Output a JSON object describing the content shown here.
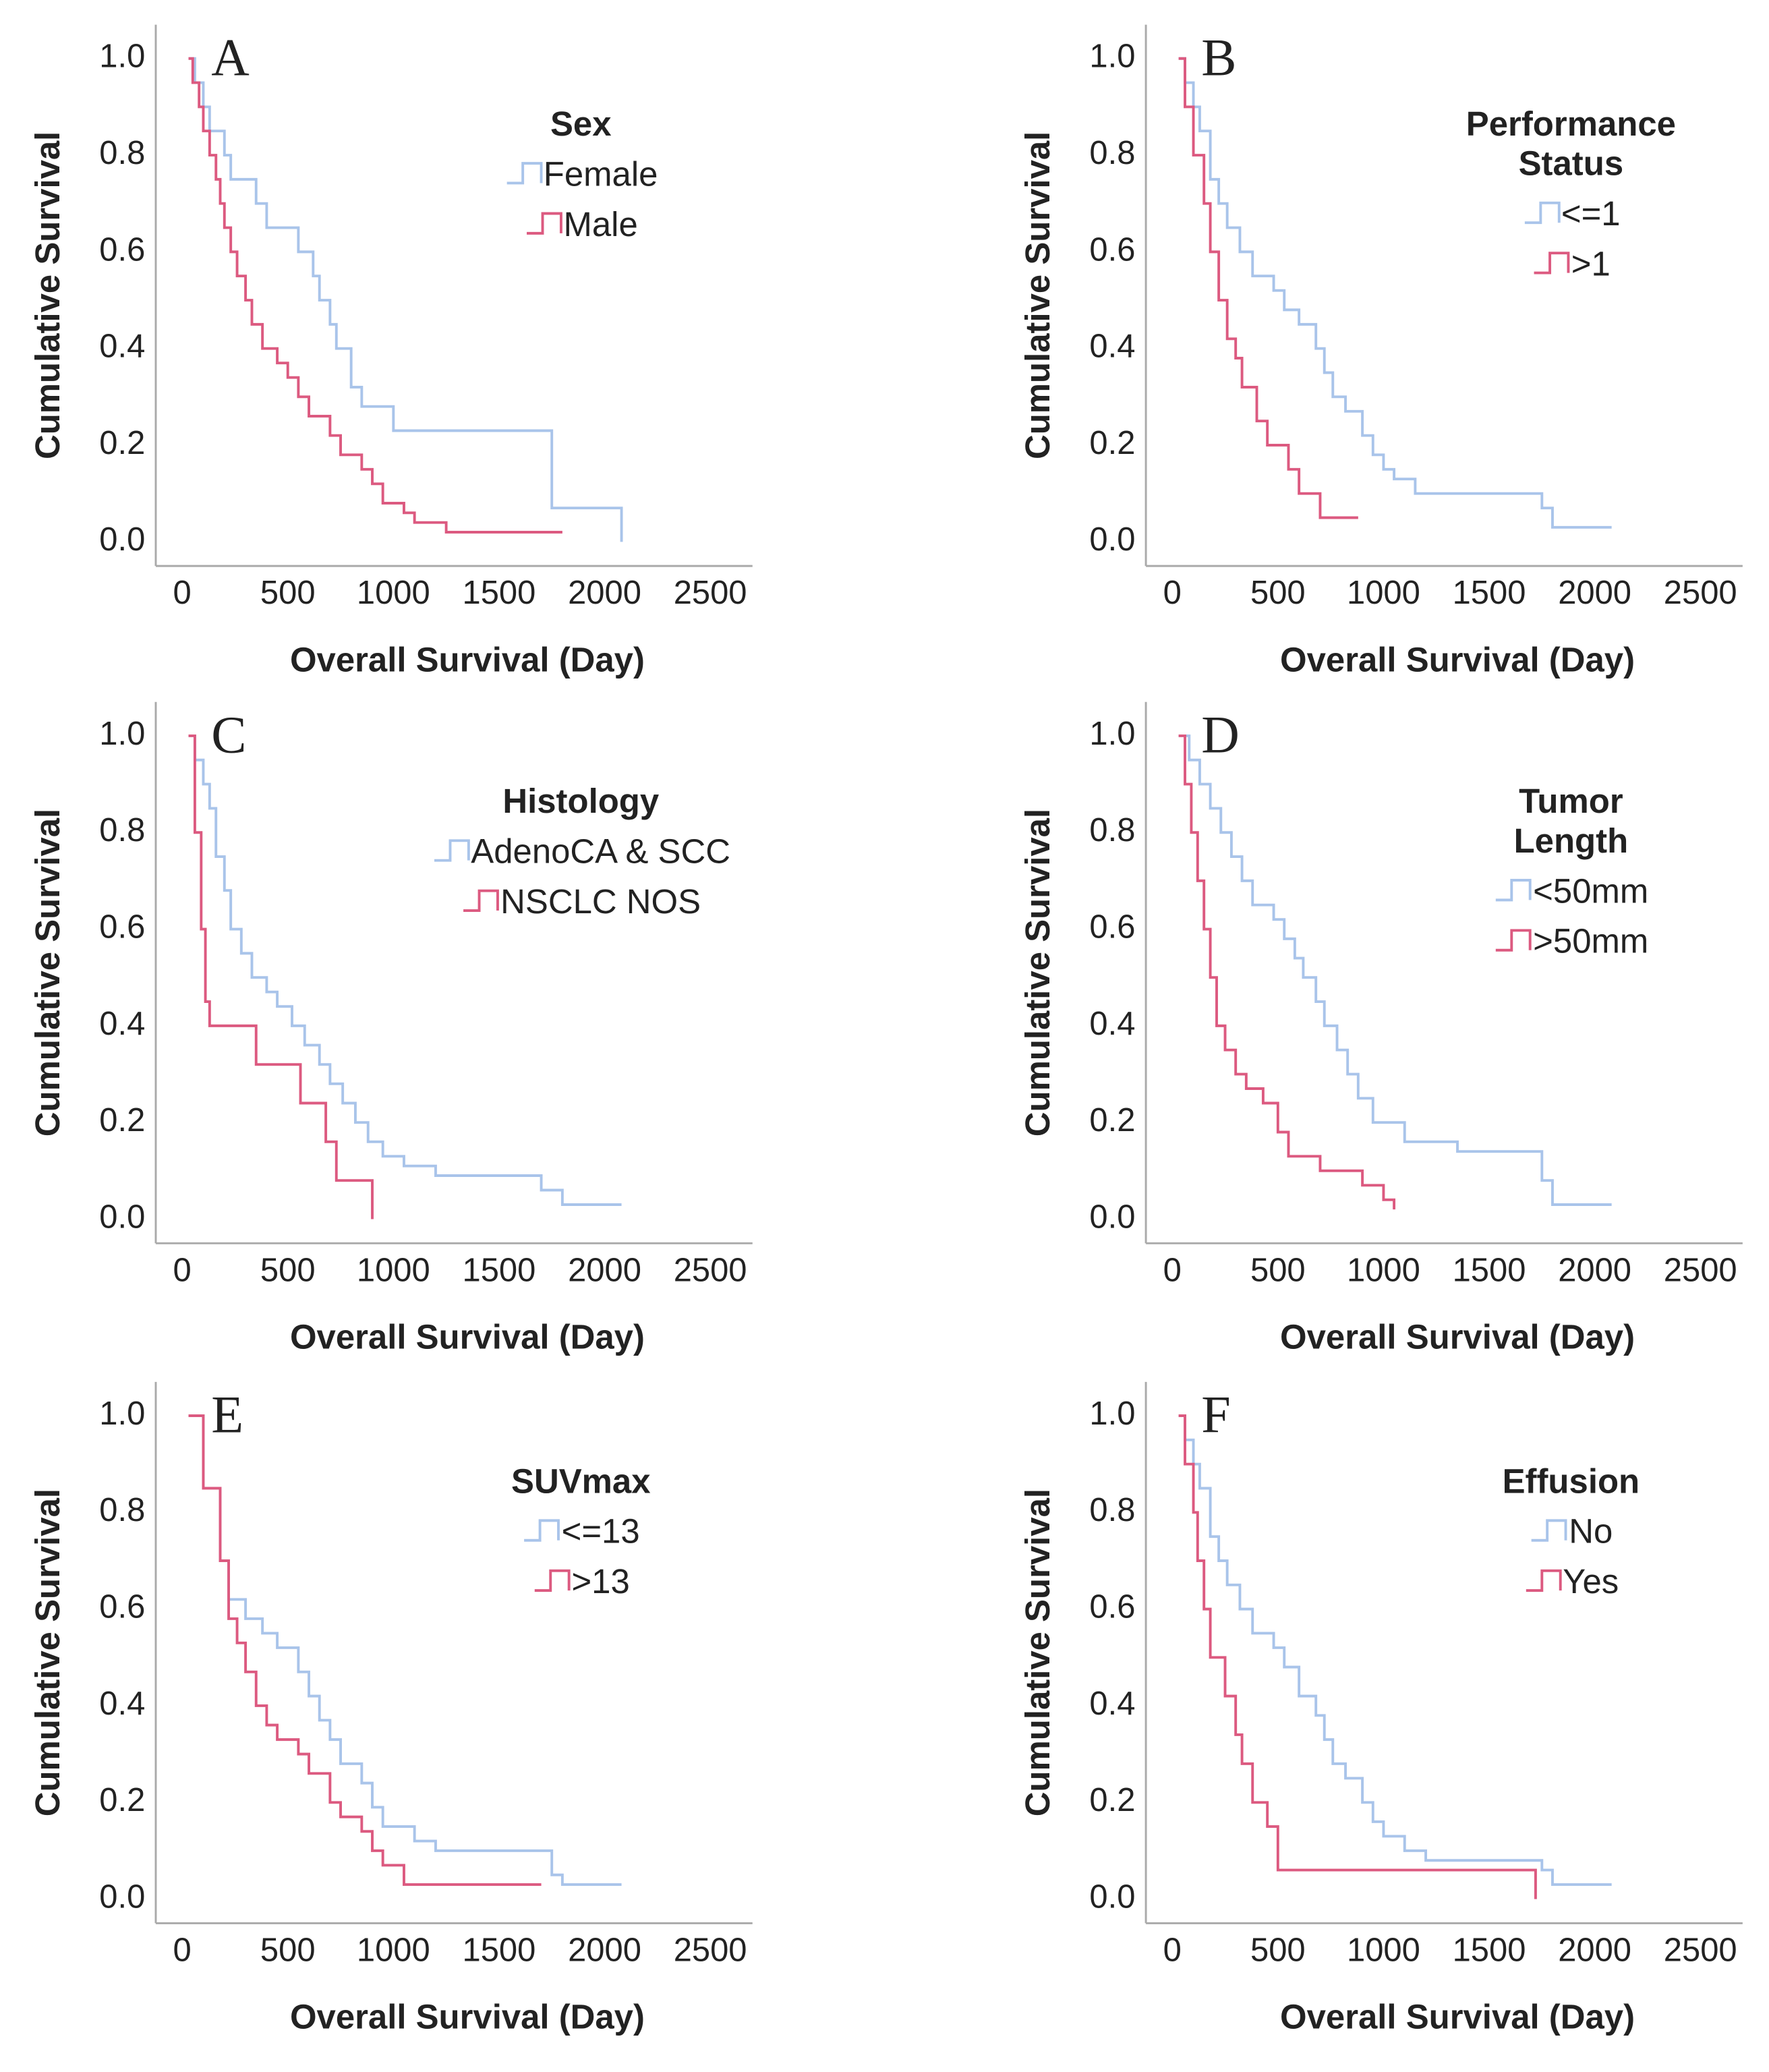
{
  "chart_data": [
    {
      "type": "line",
      "step": true,
      "label": "A",
      "legend_title": "Sex",
      "xlabel": "Overall Survival (Day)",
      "ylabel": "Cumulative Survival",
      "xlim": [
        -125,
        2700
      ],
      "ylim": [
        -0.05,
        1.07
      ],
      "xticks": [
        0,
        500,
        1000,
        1500,
        2000,
        2500
      ],
      "yticks": [
        {
          "value": 0,
          "label": "0.0"
        },
        {
          "value": 0.2,
          "label": "0.2"
        },
        {
          "value": 0.4,
          "label": "0.4"
        },
        {
          "value": 0.6,
          "label": "0.6"
        },
        {
          "value": 0.8,
          "label": "0.8"
        },
        {
          "value": 1,
          "label": "1.0"
        }
      ],
      "grid": false,
      "series": [
        {
          "name": "Female",
          "color": "#a9c4ea",
          "x": [
            30,
            60,
            100,
            130,
            200,
            230,
            350,
            400,
            550,
            620,
            650,
            700,
            730,
            800,
            850,
            1000,
            1750,
            2080
          ],
          "values": [
            1,
            0.95,
            0.9,
            0.85,
            0.8,
            0.75,
            0.7,
            0.65,
            0.6,
            0.55,
            0.5,
            0.45,
            0.4,
            0.32,
            0.28,
            0.23,
            0.07,
            0
          ]
        },
        {
          "name": "Male",
          "color": "#dc5a80",
          "x": [
            30,
            50,
            80,
            100,
            130,
            160,
            180,
            200,
            230,
            260,
            300,
            330,
            380,
            450,
            500,
            550,
            600,
            700,
            750,
            850,
            900,
            950,
            1050,
            1100,
            1250,
            1800
          ],
          "values": [
            1,
            0.95,
            0.9,
            0.85,
            0.8,
            0.75,
            0.7,
            0.65,
            0.6,
            0.55,
            0.5,
            0.45,
            0.4,
            0.37,
            0.34,
            0.3,
            0.26,
            0.22,
            0.18,
            0.15,
            0.12,
            0.08,
            0.06,
            0.04,
            0.02,
            0.02
          ]
        }
      ]
    },
    {
      "type": "line",
      "step": true,
      "label": "B",
      "legend_title": "Performance Status",
      "xlabel": "Overall Survival (Day)",
      "ylabel": "Cumulative Survival",
      "xlim": [
        -125,
        2700
      ],
      "ylim": [
        -0.05,
        1.07
      ],
      "xticks": [
        0,
        500,
        1000,
        1500,
        2000,
        2500
      ],
      "yticks": [
        {
          "value": 0,
          "label": "0.0"
        },
        {
          "value": 0.2,
          "label": "0.2"
        },
        {
          "value": 0.4,
          "label": "0.4"
        },
        {
          "value": 0.6,
          "label": "0.6"
        },
        {
          "value": 0.8,
          "label": "0.8"
        },
        {
          "value": 1,
          "label": "1.0"
        }
      ],
      "grid": false,
      "series": [
        {
          "name": "<=1",
          "color": "#a9c4ea",
          "x": [
            30,
            60,
            100,
            130,
            180,
            220,
            260,
            320,
            380,
            480,
            530,
            600,
            680,
            720,
            760,
            820,
            900,
            950,
            1000,
            1050,
            1150,
            1750,
            1800,
            2080
          ],
          "values": [
            1,
            0.95,
            0.9,
            0.85,
            0.75,
            0.7,
            0.65,
            0.6,
            0.55,
            0.52,
            0.48,
            0.45,
            0.4,
            0.35,
            0.3,
            0.27,
            0.22,
            0.18,
            0.15,
            0.13,
            0.1,
            0.07,
            0.03,
            0.03
          ]
        },
        {
          "name": ">1",
          "color": "#dc5a80",
          "x": [
            30,
            60,
            100,
            150,
            180,
            220,
            260,
            300,
            330,
            400,
            450,
            550,
            600,
            700,
            880
          ],
          "values": [
            1,
            0.9,
            0.8,
            0.7,
            0.6,
            0.5,
            0.42,
            0.38,
            0.32,
            0.25,
            0.2,
            0.15,
            0.1,
            0.05,
            0.05
          ]
        }
      ]
    },
    {
      "type": "line",
      "step": true,
      "label": "C",
      "legend_title": "Histology",
      "xlabel": "Overall Survival (Day)",
      "ylabel": "Cumulative Survival",
      "xlim": [
        -125,
        2700
      ],
      "ylim": [
        -0.05,
        1.07
      ],
      "xticks": [
        0,
        500,
        1000,
        1500,
        2000,
        2500
      ],
      "yticks": [
        {
          "value": 0,
          "label": "0.0"
        },
        {
          "value": 0.2,
          "label": "0.2"
        },
        {
          "value": 0.4,
          "label": "0.4"
        },
        {
          "value": 0.6,
          "label": "0.6"
        },
        {
          "value": 0.8,
          "label": "0.8"
        },
        {
          "value": 1,
          "label": "1.0"
        }
      ],
      "grid": false,
      "series": [
        {
          "name": "AdenoCA & SCC",
          "color": "#a9c4ea",
          "x": [
            30,
            60,
            100,
            130,
            160,
            200,
            230,
            280,
            330,
            400,
            450,
            520,
            580,
            650,
            700,
            760,
            820,
            880,
            950,
            1050,
            1200,
            1700,
            1800,
            2080
          ],
          "values": [
            1,
            0.95,
            0.9,
            0.85,
            0.75,
            0.68,
            0.6,
            0.55,
            0.5,
            0.47,
            0.44,
            0.4,
            0.36,
            0.32,
            0.28,
            0.24,
            0.2,
            0.16,
            0.13,
            0.11,
            0.09,
            0.06,
            0.03,
            0.03
          ]
        },
        {
          "name": "NSCLC NOS",
          "color": "#dc5a80",
          "x": [
            30,
            60,
            90,
            110,
            130,
            350,
            560,
            680,
            730,
            900
          ],
          "values": [
            1,
            0.8,
            0.6,
            0.45,
            0.4,
            0.32,
            0.24,
            0.16,
            0.08,
            0
          ]
        }
      ]
    },
    {
      "type": "line",
      "step": true,
      "label": "D",
      "legend_title": "Tumor Length",
      "xlabel": "Overall Survival (Day)",
      "ylabel": "Cumulative Survival",
      "xlim": [
        -125,
        2700
      ],
      "ylim": [
        -0.05,
        1.07
      ],
      "xticks": [
        0,
        500,
        1000,
        1500,
        2000,
        2500
      ],
      "yticks": [
        {
          "value": 0,
          "label": "0.0"
        },
        {
          "value": 0.2,
          "label": "0.2"
        },
        {
          "value": 0.4,
          "label": "0.4"
        },
        {
          "value": 0.6,
          "label": "0.6"
        },
        {
          "value": 0.8,
          "label": "0.8"
        },
        {
          "value": 1,
          "label": "1.0"
        }
      ],
      "grid": false,
      "series": [
        {
          "name": "<50mm",
          "color": "#a9c4ea",
          "x": [
            30,
            80,
            130,
            180,
            230,
            280,
            330,
            380,
            480,
            530,
            580,
            620,
            680,
            720,
            780,
            830,
            880,
            950,
            1100,
            1350,
            1750,
            1800,
            2080
          ],
          "values": [
            1,
            0.95,
            0.9,
            0.85,
            0.8,
            0.75,
            0.7,
            0.65,
            0.62,
            0.58,
            0.54,
            0.5,
            0.45,
            0.4,
            0.35,
            0.3,
            0.25,
            0.2,
            0.16,
            0.14,
            0.08,
            0.03,
            0.03
          ]
        },
        {
          "name": ">50mm",
          "color": "#dc5a80",
          "x": [
            30,
            60,
            90,
            120,
            150,
            180,
            210,
            250,
            300,
            350,
            430,
            500,
            550,
            700,
            900,
            1000,
            1050
          ],
          "values": [
            1,
            0.9,
            0.8,
            0.7,
            0.6,
            0.5,
            0.4,
            0.35,
            0.3,
            0.27,
            0.24,
            0.18,
            0.13,
            0.1,
            0.07,
            0.04,
            0.02
          ]
        }
      ]
    },
    {
      "type": "line",
      "step": true,
      "label": "E",
      "legend_title": "SUVmax",
      "xlabel": "Overall Survival (Day)",
      "ylabel": "Cumulative Survival",
      "xlim": [
        -125,
        2700
      ],
      "ylim": [
        -0.05,
        1.07
      ],
      "xticks": [
        0,
        500,
        1000,
        1500,
        2000,
        2500
      ],
      "yticks": [
        {
          "value": 0,
          "label": "0.0"
        },
        {
          "value": 0.2,
          "label": "0.2"
        },
        {
          "value": 0.4,
          "label": "0.4"
        },
        {
          "value": 0.6,
          "label": "0.6"
        },
        {
          "value": 0.8,
          "label": "0.8"
        },
        {
          "value": 1,
          "label": "1.0"
        }
      ],
      "grid": false,
      "series": [
        {
          "name": "<=13",
          "color": "#a9c4ea",
          "x": [
            30,
            100,
            180,
            220,
            300,
            380,
            450,
            550,
            600,
            650,
            700,
            750,
            850,
            900,
            950,
            1100,
            1200,
            1750,
            1800,
            2080
          ],
          "values": [
            1,
            0.85,
            0.7,
            0.62,
            0.58,
            0.55,
            0.52,
            0.47,
            0.42,
            0.37,
            0.33,
            0.28,
            0.24,
            0.19,
            0.15,
            0.12,
            0.1,
            0.05,
            0.03,
            0.03
          ]
        },
        {
          "name": ">13",
          "color": "#dc5a80",
          "x": [
            30,
            100,
            180,
            220,
            260,
            300,
            350,
            400,
            450,
            550,
            600,
            700,
            750,
            850,
            900,
            950,
            1050,
            1700
          ],
          "values": [
            1,
            0.85,
            0.7,
            0.58,
            0.53,
            0.47,
            0.4,
            0.36,
            0.33,
            0.3,
            0.26,
            0.2,
            0.17,
            0.14,
            0.1,
            0.07,
            0.03,
            0.03
          ]
        }
      ]
    },
    {
      "type": "line",
      "step": true,
      "label": "F",
      "legend_title": "Effusion",
      "xlabel": "Overall Survival (Day)",
      "ylabel": "Cumulative Survival",
      "xlim": [
        -125,
        2700
      ],
      "ylim": [
        -0.05,
        1.07
      ],
      "xticks": [
        0,
        500,
        1000,
        1500,
        2000,
        2500
      ],
      "yticks": [
        {
          "value": 0,
          "label": "0.0"
        },
        {
          "value": 0.2,
          "label": "0.2"
        },
        {
          "value": 0.4,
          "label": "0.4"
        },
        {
          "value": 0.6,
          "label": "0.6"
        },
        {
          "value": 0.8,
          "label": "0.8"
        },
        {
          "value": 1,
          "label": "1.0"
        }
      ],
      "grid": false,
      "series": [
        {
          "name": "No",
          "color": "#a9c4ea",
          "x": [
            30,
            60,
            100,
            130,
            180,
            220,
            260,
            320,
            380,
            480,
            530,
            600,
            680,
            720,
            760,
            820,
            900,
            950,
            1000,
            1100,
            1200,
            1750,
            1800,
            2080
          ],
          "values": [
            1,
            0.95,
            0.9,
            0.85,
            0.75,
            0.7,
            0.65,
            0.6,
            0.55,
            0.52,
            0.48,
            0.42,
            0.38,
            0.33,
            0.28,
            0.25,
            0.2,
            0.16,
            0.13,
            0.1,
            0.08,
            0.06,
            0.03,
            0.03
          ]
        },
        {
          "name": "Yes",
          "color": "#dc5a80",
          "x": [
            30,
            60,
            100,
            120,
            150,
            180,
            250,
            300,
            330,
            380,
            450,
            500,
            1700,
            1720
          ],
          "values": [
            1,
            0.9,
            0.8,
            0.7,
            0.6,
            0.5,
            0.42,
            0.34,
            0.28,
            0.2,
            0.15,
            0.06,
            0.06,
            0
          ]
        }
      ]
    }
  ]
}
